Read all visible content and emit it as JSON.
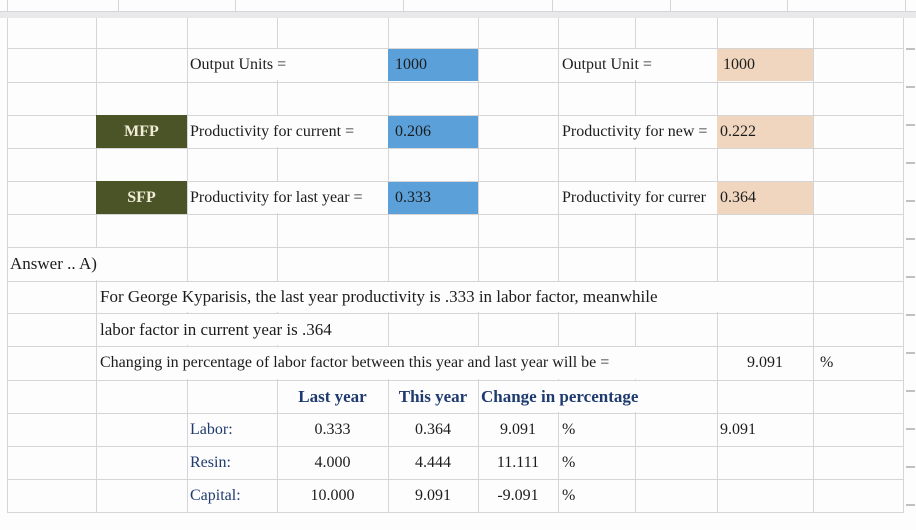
{
  "colors": {
    "input_blue": "#5ba0d9",
    "input_tan": "#f0d6bf",
    "chip_green": "#4a5426",
    "header_navy": "#1e3a6e"
  },
  "top_left": {
    "output_units_label": "Output Units =",
    "output_units_value": "1000",
    "mfp_chip": "MFP",
    "current_label": "Productivity for current =",
    "current_value": "0.206",
    "sfp_chip": "SFP",
    "last_year_label": "Productivity for last year =",
    "last_year_value": "0.333"
  },
  "top_right": {
    "output_unit_label": "Output Unit =",
    "output_unit_value": "1000",
    "new_label": "Productivity for new =",
    "new_value": "0.222",
    "current_label": "Productivity for currer",
    "current_value": "0.364"
  },
  "answer": {
    "heading": "Answer .. A)",
    "line1": "For George Kyparisis, the last year productivity is .333 in labor factor, meanwhile",
    "line2": "labor factor in current year is .364",
    "line3": "Changing in percentage of labor factor between this year and last year will be =",
    "line3_value": "9.091",
    "line3_unit": "%"
  },
  "table": {
    "headers": {
      "last_year": "Last year",
      "this_year": "This year",
      "change": "Change in percentage"
    },
    "rows": [
      {
        "label": "Labor:",
        "last_year": "0.333",
        "this_year": "0.364",
        "change": "9.091",
        "unit": "%",
        "extra": "9.091"
      },
      {
        "label": "Resin:",
        "last_year": "4.000",
        "this_year": "4.444",
        "change": "11.111",
        "unit": "%",
        "extra": ""
      },
      {
        "label": "Capital:",
        "last_year": "10.000",
        "this_year": "9.091",
        "change": "-9.091",
        "unit": "%",
        "extra": ""
      }
    ]
  }
}
